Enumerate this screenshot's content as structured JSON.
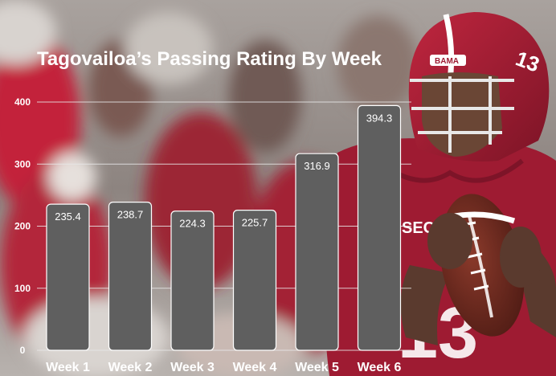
{
  "chart_data": {
    "type": "bar",
    "title": "Tagovailoa’s Passing Rating By Week",
    "xlabel": "",
    "ylabel": "",
    "categories": [
      "Week 1",
      "Week 2",
      "Week 3",
      "Week 4",
      "Week 5",
      "Week 6"
    ],
    "values": [
      235.4,
      238.7,
      224.3,
      225.7,
      316.9,
      394.3
    ],
    "data_labels": [
      "235.4",
      "238.7",
      "224.3",
      "225.7",
      "316.9",
      "394.3"
    ],
    "ylim": [
      0,
      400
    ],
    "yticks": [
      0,
      100,
      200,
      300,
      400
    ],
    "ytick_labels": [
      "0",
      "100",
      "200",
      "300",
      "400"
    ],
    "grid": true,
    "legend": "none",
    "colors": {
      "bar": "#5f5f5f",
      "bar_border": "#ffffff",
      "text": "#ffffff",
      "grid": "#e8e8e8",
      "jersey": "#9e1b32"
    }
  },
  "background": {
    "description_icon": "football-player-photo"
  }
}
